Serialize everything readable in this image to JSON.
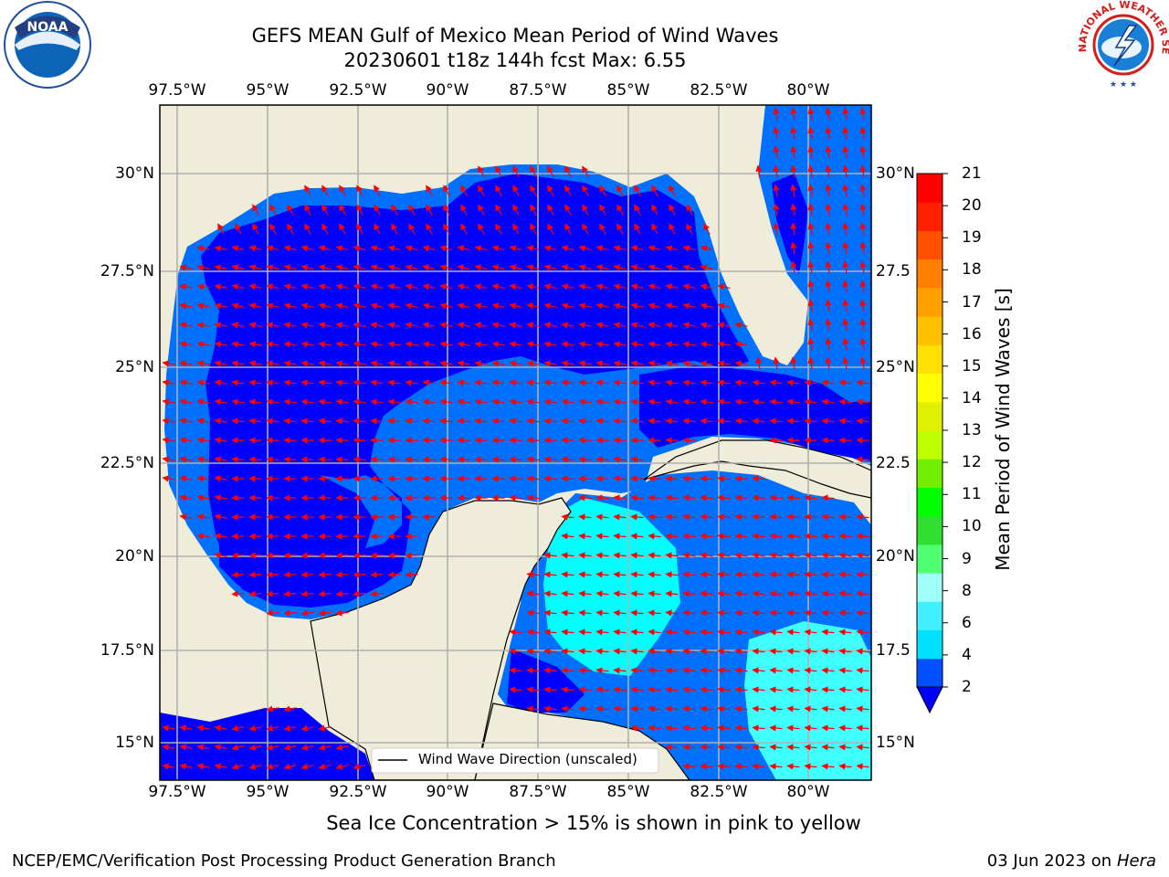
{
  "title_line1": "GEFS MEAN Gulf of Mexico Mean Period of Wind Waves",
  "title_line2": "20230601 t18z 144h fcst   Max: 6.55",
  "lon_labels": [
    "97.5°W",
    "95°W",
    "92.5°W",
    "90°W",
    "87.5°W",
    "85°W",
    "82.5°W",
    "80°W"
  ],
  "lat_labels_left": [
    "30°N",
    "27.5°N",
    "25°N",
    "22.5°N",
    "20°N",
    "17.5°N",
    "15°N"
  ],
  "lat_labels_right": [
    "30°N",
    "27.5",
    "25°N",
    "22.5",
    "20°N",
    "17.5",
    "15°N"
  ],
  "colorbar": {
    "label": "Mean Period of Wind Waves [s]",
    "ticks": [
      "2",
      "4",
      "6",
      "8",
      "9",
      "10",
      "11",
      "12",
      "13",
      "14",
      "15",
      "16",
      "17",
      "18",
      "19",
      "20",
      "21"
    ],
    "colors": [
      "#0050ff",
      "#00e0ff",
      "#40f0ff",
      "#a0fff8",
      "#50ff70",
      "#30e030",
      "#00ff00",
      "#70f000",
      "#c0ff00",
      "#e0f000",
      "#ffff00",
      "#ffe000",
      "#ffc000",
      "#ffa000",
      "#ff8000",
      "#ff5000",
      "#ff2000",
      "#ff0000"
    ],
    "extend_color": "#0000ff"
  },
  "legend_text": "Wind Wave Direction (unscaled)",
  "note": "Sea Ice Concentration > 15% is shown in pink to yellow",
  "credit": "NCEP/EMC/Verification Post Processing Product Generation Branch",
  "date_text": "03 Jun 2023 on",
  "date_host": "Hera",
  "logos": {
    "left": "NOAA",
    "right_arc": "NATIONAL WEATHER SERVICE"
  },
  "colors": {
    "land": "#efedda",
    "deep_blue": "#0000ff",
    "mid_blue": "#0070ff",
    "cyan": "#00ffff",
    "arrow": "#ff0000"
  }
}
